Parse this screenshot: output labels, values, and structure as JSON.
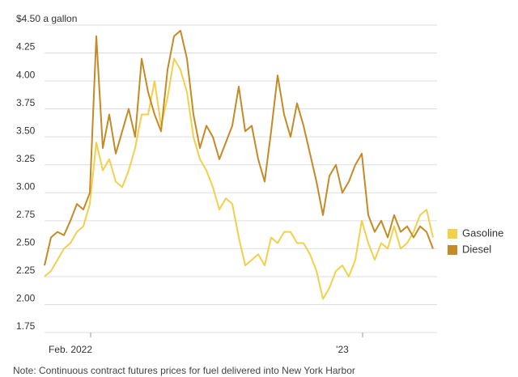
{
  "chart_data": {
    "type": "line",
    "note": "Note: Continuous contract futures prices for fuel delivered into New York Harbor",
    "categories": [
      null,
      null,
      null,
      null,
      "Feb. 2022",
      null,
      null,
      null,
      null,
      null,
      null,
      null,
      null,
      null,
      null,
      null,
      null,
      null,
      null,
      null,
      null,
      null,
      null,
      null,
      null,
      null,
      null,
      null,
      null,
      null,
      null,
      null,
      null,
      null,
      null,
      null,
      null,
      null,
      null,
      null,
      null,
      null,
      null,
      null,
      null,
      null,
      "'23",
      null,
      null,
      null,
      null,
      null,
      null,
      null,
      null,
      null,
      null,
      null,
      null,
      null,
      null
    ],
    "series": [
      {
        "name": "Gasoline",
        "color": "#f2d04b",
        "values": [
          2.25,
          2.3,
          2.4,
          2.5,
          2.55,
          2.65,
          2.7,
          2.9,
          3.45,
          3.2,
          3.3,
          3.1,
          3.05,
          3.2,
          3.4,
          3.7,
          3.7,
          4.0,
          3.6,
          3.85,
          4.2,
          4.1,
          3.9,
          3.5,
          3.3,
          3.2,
          3.05,
          2.85,
          2.95,
          2.9,
          2.6,
          2.35,
          2.4,
          2.45,
          2.35,
          2.6,
          2.55,
          2.65,
          2.65,
          2.55,
          2.55,
          2.45,
          2.3,
          2.05,
          2.15,
          2.3,
          2.35,
          2.25,
          2.4,
          2.75,
          2.55,
          2.4,
          2.55,
          2.5,
          2.7,
          2.5,
          2.55,
          2.65,
          2.8,
          2.85,
          2.6
        ]
      },
      {
        "name": "Diesel",
        "color": "#c48a26",
        "values": [
          2.35,
          2.6,
          2.65,
          2.62,
          2.75,
          2.9,
          2.85,
          3.0,
          4.4,
          3.4,
          3.7,
          3.35,
          3.55,
          3.75,
          3.5,
          4.2,
          3.9,
          3.7,
          3.55,
          4.1,
          4.4,
          4.45,
          4.2,
          3.7,
          3.4,
          3.6,
          3.5,
          3.3,
          3.45,
          3.6,
          3.95,
          3.55,
          3.6,
          3.3,
          3.1,
          3.55,
          4.05,
          3.7,
          3.5,
          3.8,
          3.6,
          3.35,
          3.1,
          2.8,
          3.15,
          3.25,
          3.0,
          3.1,
          3.25,
          3.35,
          2.8,
          2.65,
          2.75,
          2.6,
          2.8,
          2.65,
          2.7,
          2.6,
          2.7,
          2.65,
          2.5
        ]
      }
    ],
    "ylim": [
      1.75,
      4.5
    ],
    "yticks": [
      1.75,
      {
        "value": 2,
        "label": "2.00"
      },
      2.25,
      {
        "value": 2.5,
        "label": "2.50"
      },
      2.75,
      {
        "value": 3,
        "label": "3.00"
      },
      3.25,
      {
        "value": 3.5,
        "label": "3.50"
      },
      3.75,
      {
        "value": 4,
        "label": "4.00"
      },
      4.25,
      {
        "value": 4.5,
        "label": "$4.50 a gallon"
      }
    ],
    "grid": true,
    "legend": "right"
  }
}
